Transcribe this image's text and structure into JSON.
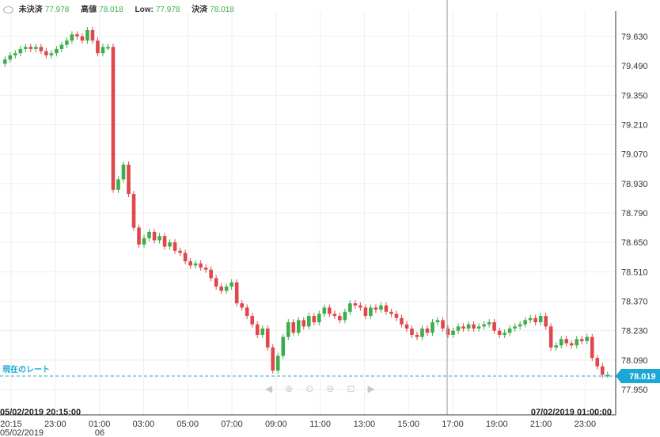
{
  "header": {
    "items": [
      {
        "label": "未決済",
        "value": "77.978"
      },
      {
        "label": "高値",
        "value": "78.018"
      },
      {
        "label": "Low:",
        "value": "77.978"
      },
      {
        "label": "決済",
        "value": "78.018"
      }
    ]
  },
  "current_rate": {
    "label": "現在のレート",
    "value": "78.019"
  },
  "crosshair": {
    "left_time": "05/02/2019 20:15:00",
    "right_time": "07/02/2019 01:00:00"
  },
  "colors": {
    "up": "#3dae4a",
    "down": "#e0474c",
    "grid": "#eeeeee",
    "current": "#1ba8d6",
    "crosshair": "#aaaaaa"
  },
  "nav_icons": [
    "scroll-left-icon",
    "zoom-in-icon",
    "zoom-reset-icon",
    "zoom-out-icon",
    "zoom-fit-icon",
    "scroll-right-icon"
  ],
  "chart_data": {
    "type": "candlestick",
    "y_ticks": [
      "79.630",
      "79.490",
      "79.350",
      "79.210",
      "79.070",
      "78.930",
      "78.790",
      "78.650",
      "78.510",
      "78.370",
      "78.230",
      "78.090",
      "77.950"
    ],
    "ylim": [
      77.95,
      79.63
    ],
    "x_ticks": [
      "20:15",
      "23:00",
      "01:00",
      "03:00",
      "05:00",
      "07:00",
      "09:00",
      "11:00",
      "13:00",
      "15:00",
      "17:00",
      "19:00",
      "21:00",
      "23:00"
    ],
    "x_sub_labels": [
      "05/02/2019",
      "06"
    ],
    "candles_close": [
      79.52,
      79.54,
      79.55,
      79.57,
      79.58,
      79.57,
      79.58,
      79.56,
      79.54,
      79.55,
      79.57,
      79.59,
      79.61,
      79.64,
      79.63,
      79.61,
      79.66,
      79.61,
      79.55,
      79.58,
      79.58,
      78.9,
      78.95,
      79.02,
      78.88,
      78.72,
      78.64,
      78.67,
      78.7,
      78.66,
      78.68,
      78.63,
      78.65,
      78.61,
      78.6,
      78.56,
      78.54,
      78.55,
      78.53,
      78.52,
      78.48,
      78.44,
      78.42,
      78.44,
      78.46,
      78.36,
      78.34,
      78.3,
      78.26,
      78.21,
      78.24,
      78.15,
      78.04,
      78.11,
      78.2,
      78.27,
      78.22,
      78.28,
      78.25,
      78.3,
      78.27,
      78.31,
      78.34,
      78.31,
      78.3,
      78.28,
      78.32,
      78.36,
      78.35,
      78.34,
      78.3,
      78.34,
      78.33,
      78.35,
      78.32,
      78.31,
      78.29,
      78.26,
      78.24,
      78.21,
      78.2,
      78.24,
      78.22,
      78.27,
      78.28,
      78.24,
      78.21,
      78.23,
      78.25,
      78.24,
      78.26,
      78.24,
      78.25,
      78.26,
      78.27,
      78.23,
      78.21,
      78.22,
      78.24,
      78.25,
      78.26,
      78.28,
      78.29,
      78.27,
      78.3,
      78.25,
      78.15,
      78.16,
      78.19,
      78.17,
      78.16,
      78.19,
      78.18,
      78.2,
      78.1,
      78.06,
      78.02,
      78.02
    ]
  }
}
